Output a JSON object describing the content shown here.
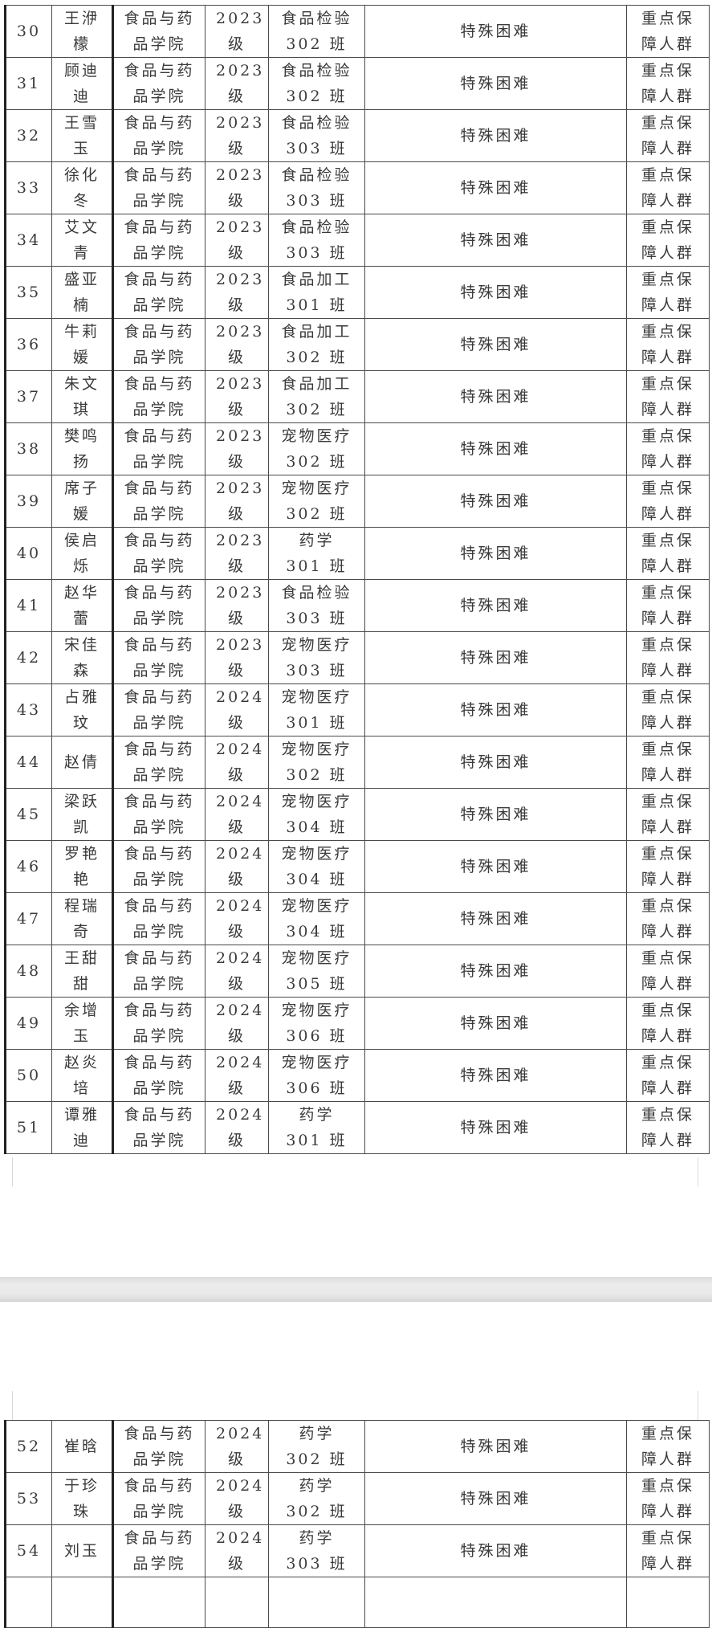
{
  "columns": [
    "index",
    "name",
    "college",
    "grade",
    "class",
    "difficulty",
    "group"
  ],
  "page1_rows": [
    {
      "index": "30",
      "name": "王洢檬",
      "college": "食品与药品学院",
      "grade": "2023级",
      "class": "食品检验302 班",
      "difficulty": "特殊困难",
      "group": "重点保障人群"
    },
    {
      "index": "31",
      "name": "顾迪迪",
      "college": "食品与药品学院",
      "grade": "2023级",
      "class": "食品检验302 班",
      "difficulty": "特殊困难",
      "group": "重点保障人群"
    },
    {
      "index": "32",
      "name": "王雪玉",
      "college": "食品与药品学院",
      "grade": "2023级",
      "class": "食品检验303 班",
      "difficulty": "特殊困难",
      "group": "重点保障人群"
    },
    {
      "index": "33",
      "name": "徐化冬",
      "college": "食品与药品学院",
      "grade": "2023级",
      "class": "食品检验303 班",
      "difficulty": "特殊困难",
      "group": "重点保障人群"
    },
    {
      "index": "34",
      "name": "艾文青",
      "college": "食品与药品学院",
      "grade": "2023级",
      "class": "食品检验303 班",
      "difficulty": "特殊困难",
      "group": "重点保障人群"
    },
    {
      "index": "35",
      "name": "盛亚楠",
      "college": "食品与药品学院",
      "grade": "2023级",
      "class": "食品加工301 班",
      "difficulty": "特殊困难",
      "group": "重点保障人群"
    },
    {
      "index": "36",
      "name": "牛莉媛",
      "college": "食品与药品学院",
      "grade": "2023级",
      "class": "食品加工302 班",
      "difficulty": "特殊困难",
      "group": "重点保障人群"
    },
    {
      "index": "37",
      "name": "朱文琪",
      "college": "食品与药品学院",
      "grade": "2023级",
      "class": "食品加工302 班",
      "difficulty": "特殊困难",
      "group": "重点保障人群"
    },
    {
      "index": "38",
      "name": "樊鸣扬",
      "college": "食品与药品学院",
      "grade": "2023级",
      "class": "宠物医疗302 班",
      "difficulty": "特殊困难",
      "group": "重点保障人群"
    },
    {
      "index": "39",
      "name": "席子媛",
      "college": "食品与药品学院",
      "grade": "2023级",
      "class": "宠物医疗302 班",
      "difficulty": "特殊困难",
      "group": "重点保障人群"
    },
    {
      "index": "40",
      "name": "侯启烁",
      "college": "食品与药品学院",
      "grade": "2023级",
      "class": "药学 301 班",
      "difficulty": "特殊困难",
      "group": "重点保障人群"
    },
    {
      "index": "41",
      "name": "赵华蕾",
      "college": "食品与药品学院",
      "grade": "2023级",
      "class": "食品检验303 班",
      "difficulty": "特殊困难",
      "group": "重点保障人群"
    },
    {
      "index": "42",
      "name": "宋佳森",
      "college": "食品与药品学院",
      "grade": "2023级",
      "class": "宠物医疗303 班",
      "difficulty": "特殊困难",
      "group": "重点保障人群"
    },
    {
      "index": "43",
      "name": "占雅玟",
      "college": "食品与药品学院",
      "grade": "2024级",
      "class": "宠物医疗301 班",
      "difficulty": "特殊困难",
      "group": "重点保障人群"
    },
    {
      "index": "44",
      "name": "赵倩",
      "college": "食品与药品学院",
      "grade": "2024级",
      "class": "宠物医疗302 班",
      "difficulty": "特殊困难",
      "group": "重点保障人群"
    },
    {
      "index": "45",
      "name": "梁跃凯",
      "college": "食品与药品学院",
      "grade": "2024级",
      "class": "宠物医疗304 班",
      "difficulty": "特殊困难",
      "group": "重点保障人群"
    },
    {
      "index": "46",
      "name": "罗艳艳",
      "college": "食品与药品学院",
      "grade": "2024级",
      "class": "宠物医疗304 班",
      "difficulty": "特殊困难",
      "group": "重点保障人群"
    },
    {
      "index": "47",
      "name": "程瑞奇",
      "college": "食品与药品学院",
      "grade": "2024级",
      "class": "宠物医疗304 班",
      "difficulty": "特殊困难",
      "group": "重点保障人群"
    },
    {
      "index": "48",
      "name": "王甜甜",
      "college": "食品与药品学院",
      "grade": "2024级",
      "class": "宠物医疗305 班",
      "difficulty": "特殊困难",
      "group": "重点保障人群"
    },
    {
      "index": "49",
      "name": "余增玉",
      "college": "食品与药品学院",
      "grade": "2024级",
      "class": "宠物医疗306 班",
      "difficulty": "特殊困难",
      "group": "重点保障人群"
    },
    {
      "index": "50",
      "name": "赵炎培",
      "college": "食品与药品学院",
      "grade": "2024级",
      "class": "宠物医疗306 班",
      "difficulty": "特殊困难",
      "group": "重点保障人群"
    },
    {
      "index": "51",
      "name": "谭雅迪",
      "college": "食品与药品学院",
      "grade": "2024级",
      "class": "药学 301 班",
      "difficulty": "特殊困难",
      "group": "重点保障人群"
    }
  ],
  "page2_rows": [
    {
      "index": "52",
      "name": "崔晗",
      "college": "食品与药品学院",
      "grade": "2024级",
      "class": "药学 302 班",
      "difficulty": "特殊困难",
      "group": "重点保障人群"
    },
    {
      "index": "53",
      "name": "于珍珠",
      "college": "食品与药品学院",
      "grade": "2024级",
      "class": "药学 302 班",
      "difficulty": "特殊困难",
      "group": "重点保障人群"
    },
    {
      "index": "54",
      "name": "刘玉",
      "college": "食品与药品学院",
      "grade": "2024级",
      "class": "药学 303 班",
      "difficulty": "特殊困难",
      "group": "重点保障人群"
    }
  ]
}
